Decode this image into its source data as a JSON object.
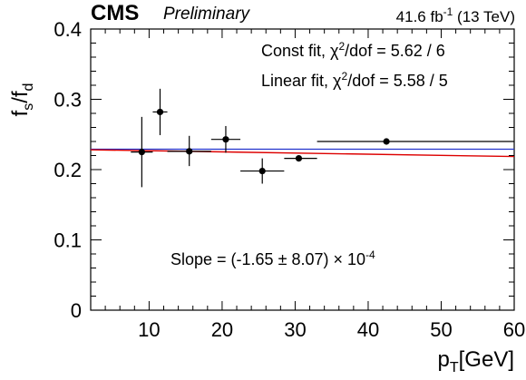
{
  "chart_data": {
    "type": "scatter",
    "experiment": "CMS",
    "status": "Preliminary",
    "lumi_text": "41.6 fb",
    "lumi_sup": "-1",
    "energy_text": " (13 TeV)",
    "ylabel": {
      "base": "f",
      "sub1": "s",
      "slash": "/f",
      "sub2": "d"
    },
    "xlabel": {
      "base": "p",
      "sub": "T",
      "unit": "[GeV]"
    },
    "xlim": [
      2,
      60
    ],
    "ylim": [
      0,
      0.4
    ],
    "x_ticks": [
      10,
      20,
      30,
      40,
      50,
      60
    ],
    "y_ticks": [
      0,
      0.1,
      0.2,
      0.3,
      0.4
    ],
    "x_tick_labels": [
      "10",
      "20",
      "30",
      "40",
      "50",
      "60"
    ],
    "y_tick_labels": [
      "0",
      "0.1",
      "0.2",
      "0.3",
      "0.4"
    ],
    "points": [
      {
        "x": 9,
        "xlo": 7.5,
        "xhi": 10.5,
        "y": 0.225,
        "ylo": 0.175,
        "yhi": 0.275
      },
      {
        "x": 11.5,
        "xlo": 10.5,
        "xhi": 12.5,
        "y": 0.282,
        "ylo": 0.249,
        "yhi": 0.315
      },
      {
        "x": 15.5,
        "xlo": 12.5,
        "xhi": 18.5,
        "y": 0.226,
        "ylo": 0.205,
        "yhi": 0.248
      },
      {
        "x": 20.5,
        "xlo": 18.5,
        "xhi": 22.5,
        "y": 0.243,
        "ylo": 0.224,
        "yhi": 0.262
      },
      {
        "x": 25.5,
        "xlo": 22.5,
        "xhi": 28.5,
        "y": 0.198,
        "ylo": 0.18,
        "yhi": 0.216
      },
      {
        "x": 30.5,
        "xlo": 28.5,
        "xhi": 33,
        "y": 0.216,
        "ylo": 0.213,
        "yhi": 0.219
      },
      {
        "x": 42.5,
        "xlo": 33,
        "xhi": 60,
        "y": 0.24,
        "ylo": 0.24,
        "yhi": 0.24
      }
    ],
    "const_fit": {
      "y": 0.229,
      "color": "#2233cc"
    },
    "linear_fit": {
      "y0": 0.2285,
      "slope": -0.000165,
      "color": "#dd0000"
    },
    "annotations": {
      "const_prefix": "Const fit, χ",
      "const_sup": "2",
      "const_suffix": "/dof = 5.62 / 6",
      "linear_prefix": "Linear fit, χ",
      "linear_sup": "2",
      "linear_suffix": "/dof = 5.58 / 5",
      "slope_prefix": "Slope = (-1.65 ± 8.07) × 10",
      "slope_sup": "-4"
    }
  }
}
